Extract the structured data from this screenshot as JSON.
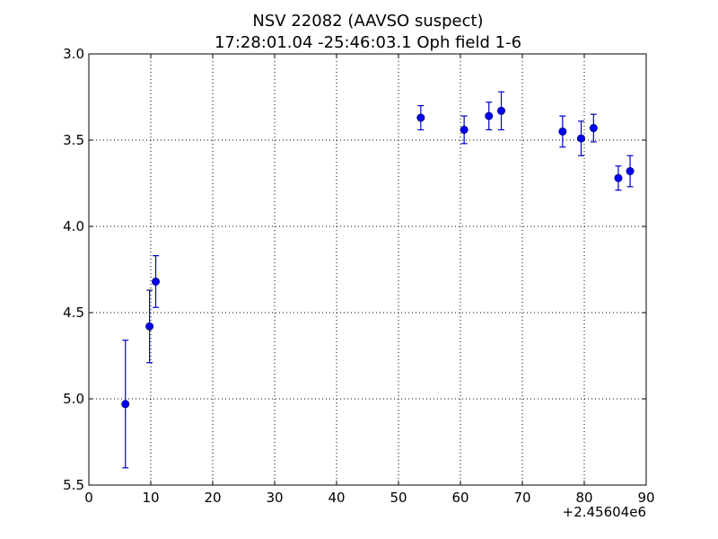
{
  "chart_data": {
    "type": "scatter",
    "title": "NSV 22082 (AAVSO suspect)",
    "subtitle": "17:28:01.04 -25:46:03.1 Oph field 1-6",
    "xlim": [
      0,
      90
    ],
    "ylim": [
      5.5,
      3.0
    ],
    "y_inverted": true,
    "x_offset_label": "+2.45604e6",
    "x_ticks": [
      {
        "value": 0,
        "label": "0"
      },
      {
        "value": 10,
        "label": "10"
      },
      {
        "value": 20,
        "label": "20"
      },
      {
        "value": 30,
        "label": "30"
      },
      {
        "value": 40,
        "label": "40"
      },
      {
        "value": 50,
        "label": "50"
      },
      {
        "value": 60,
        "label": "60"
      },
      {
        "value": 70,
        "label": "70"
      },
      {
        "value": 80,
        "label": "80"
      },
      {
        "value": 90,
        "label": "90"
      }
    ],
    "y_ticks": [
      {
        "value": 3.0,
        "label": "3.0"
      },
      {
        "value": 3.5,
        "label": "3.5"
      },
      {
        "value": 4.0,
        "label": "4.0"
      },
      {
        "value": 4.5,
        "label": "4.5"
      },
      {
        "value": 5.0,
        "label": "5.0"
      },
      {
        "value": 5.5,
        "label": "5.5"
      }
    ],
    "grid": true,
    "marker_color": "#0000ee",
    "errorbar_color": "#0000cc",
    "points": [
      {
        "x": 5.9,
        "y": 5.03,
        "err": 0.37
      },
      {
        "x": 9.8,
        "y": 4.58,
        "err": 0.21
      },
      {
        "x": 10.8,
        "y": 4.32,
        "err": 0.15
      },
      {
        "x": 53.6,
        "y": 3.37,
        "err": 0.07
      },
      {
        "x": 60.6,
        "y": 3.44,
        "err": 0.08
      },
      {
        "x": 64.6,
        "y": 3.36,
        "err": 0.08
      },
      {
        "x": 66.6,
        "y": 3.33,
        "err": 0.11
      },
      {
        "x": 76.5,
        "y": 3.45,
        "err": 0.09
      },
      {
        "x": 79.5,
        "y": 3.49,
        "err": 0.1
      },
      {
        "x": 81.5,
        "y": 3.43,
        "err": 0.08
      },
      {
        "x": 85.5,
        "y": 3.72,
        "err": 0.07
      },
      {
        "x": 87.4,
        "y": 3.68,
        "err": 0.09
      }
    ]
  }
}
